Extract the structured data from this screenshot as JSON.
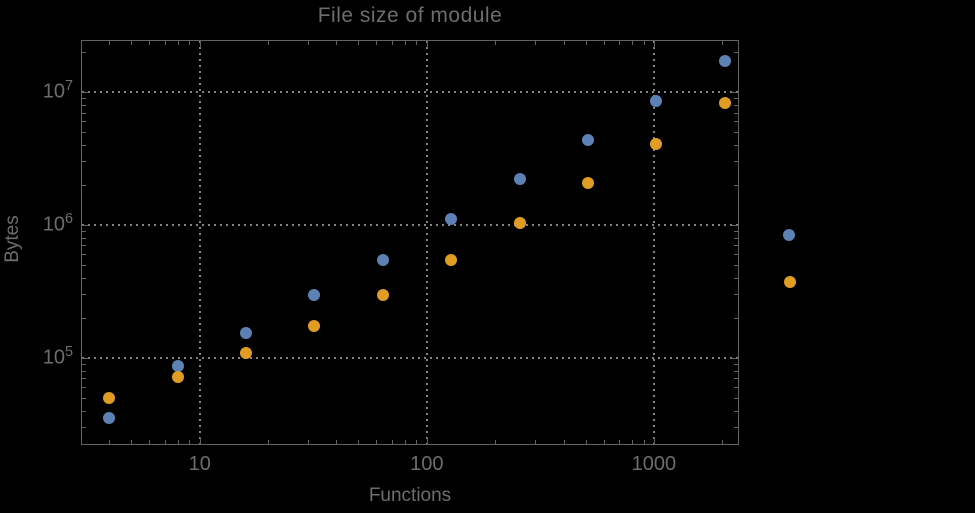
{
  "title": "File size of module",
  "xlabel": "Functions",
  "ylabel": "Bytes",
  "colors": {
    "background": "#000000",
    "frame": "#636363",
    "grid": "#848484",
    "text": "#6d6d6d",
    "series1": "#5e81b5",
    "series2": "#e19c24"
  },
  "chart_data": {
    "type": "scatter",
    "title": "File size of module",
    "xlabel": "Functions",
    "ylabel": "Bytes",
    "x_scale": "log",
    "y_scale": "log",
    "xlim": [
      3.0,
      2370
    ],
    "ylim": [
      22000,
      24600000
    ],
    "grid": "dotted lines at decade ticks, both axes",
    "x": [
      4,
      8,
      16,
      32,
      64,
      128,
      256,
      512,
      1024,
      2048
    ],
    "series": [
      {
        "name": "series-1-blue",
        "color": "#5e81b5",
        "values": [
          35000,
          87000,
          154000,
          298000,
          540000,
          1110000,
          2220000,
          4360000,
          8550000,
          17100000
        ]
      },
      {
        "name": "series-2-orange",
        "color": "#e19c24",
        "values": [
          50000,
          71000,
          109000,
          174000,
          298000,
          545000,
          1030000,
          2070000,
          4060000,
          8260000
        ]
      }
    ],
    "x_ticks": {
      "values": [
        10,
        100,
        1000
      ],
      "labels": [
        "10",
        "100",
        "1000"
      ]
    },
    "y_ticks": {
      "values": [
        100000,
        1000000,
        10000000
      ],
      "labels": [
        {
          "base": "10",
          "exp": "5"
        },
        {
          "base": "10",
          "exp": "6"
        },
        {
          "base": "10",
          "exp": "7"
        }
      ]
    },
    "legend": {
      "position": "outside-right",
      "labels_visible": false,
      "items": [
        {
          "series": "series-1-blue",
          "color": "#5e81b5"
        },
        {
          "series": "series-2-orange",
          "color": "#e19c24"
        }
      ]
    }
  }
}
